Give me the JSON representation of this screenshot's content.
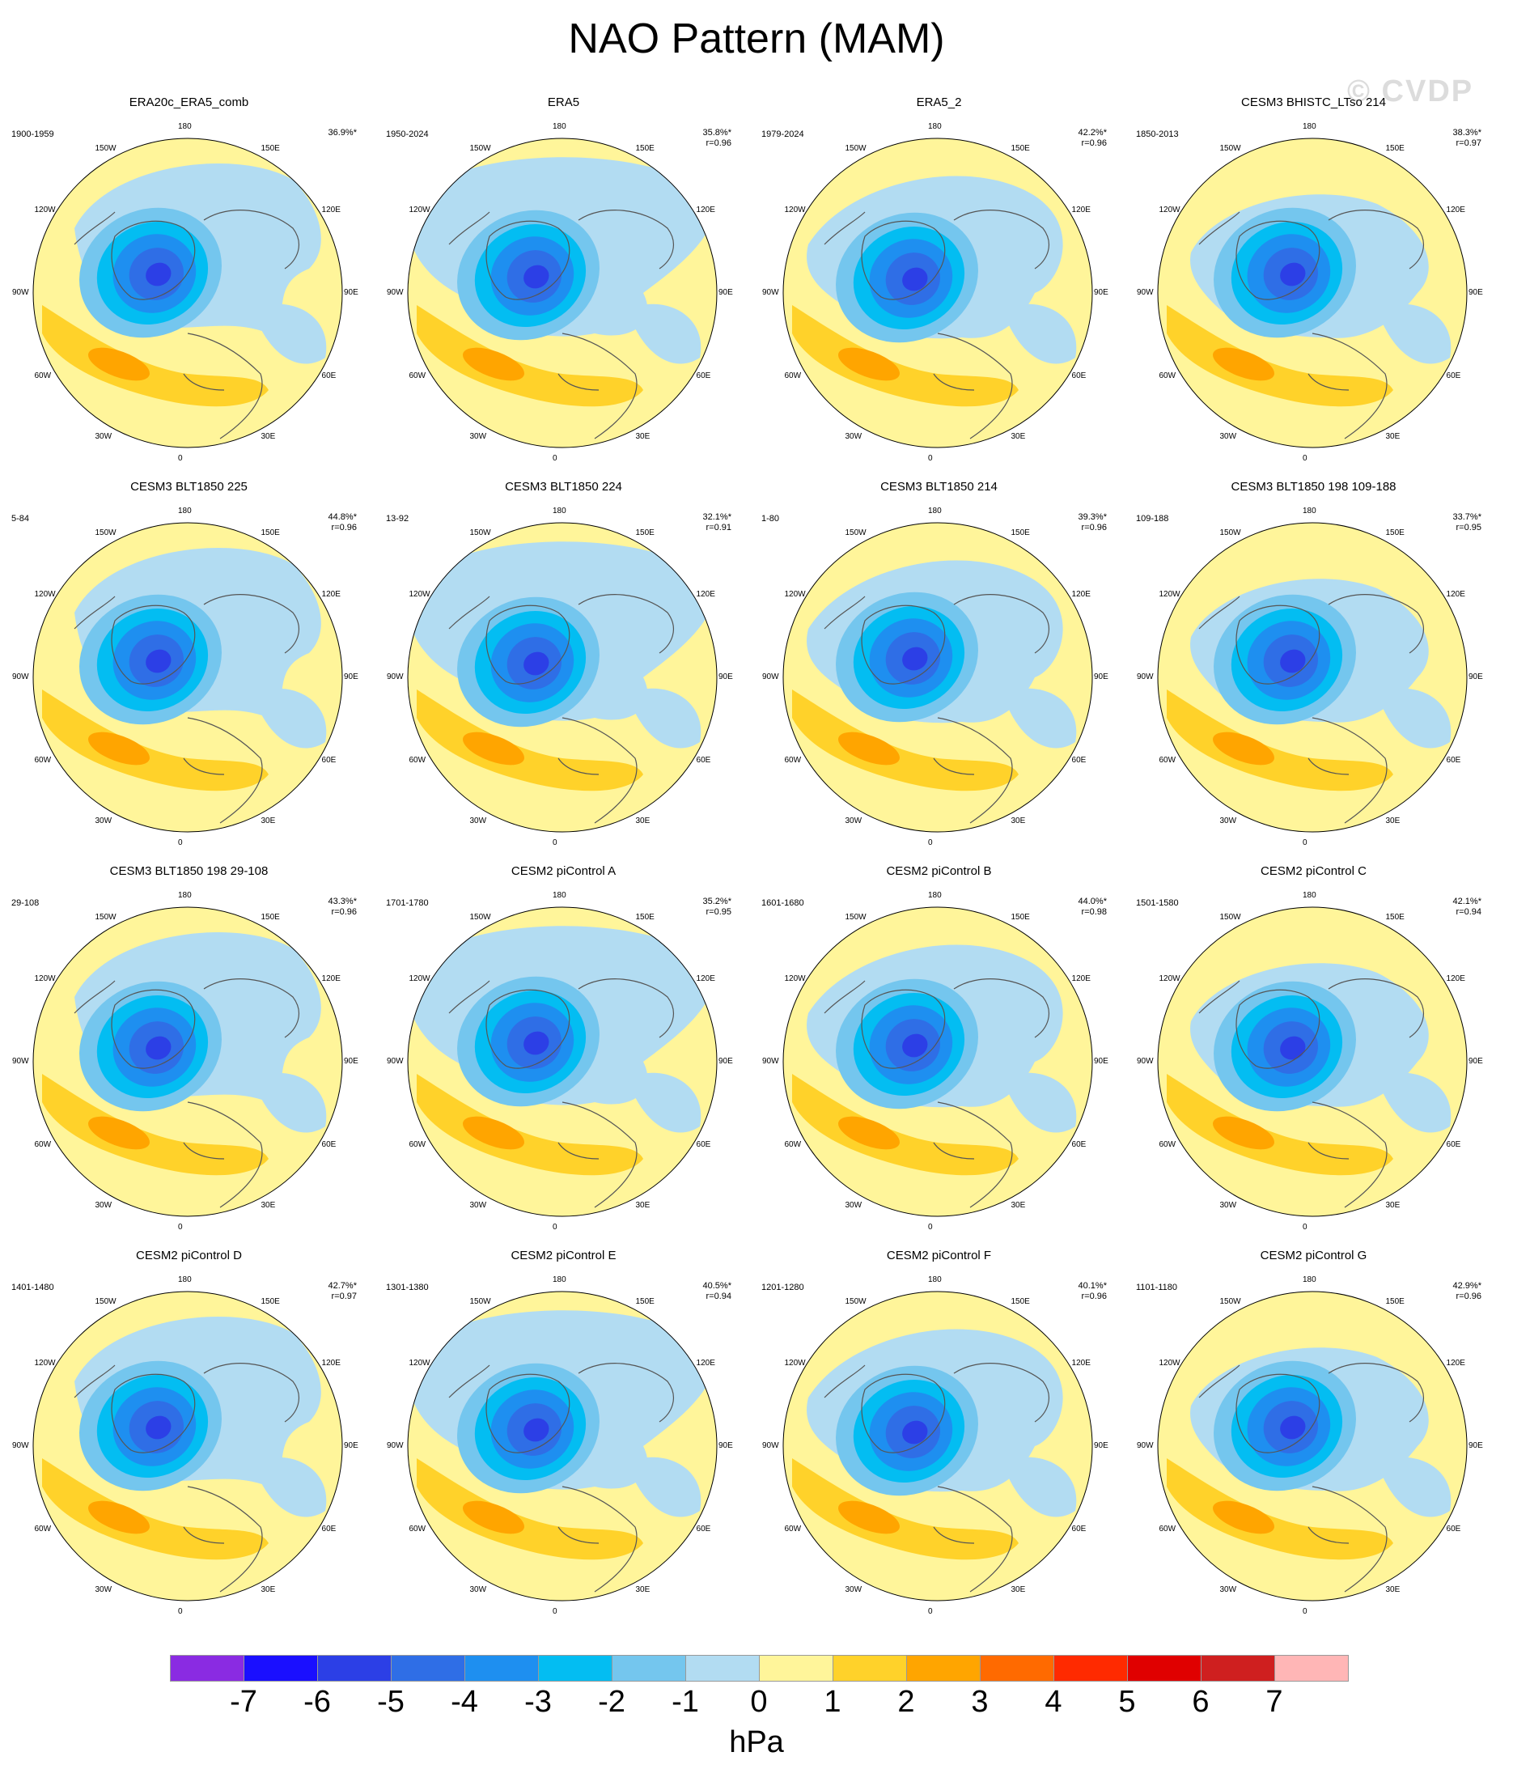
{
  "title": "NAO Pattern (MAM)",
  "watermark": "© CVDP",
  "units": "hPa",
  "longitude_labels": [
    "180",
    "150E",
    "120E",
    "90E",
    "60E",
    "30E",
    "0",
    "30W",
    "60W",
    "90W",
    "120W",
    "150W"
  ],
  "colorbar": {
    "labels": [
      "-7",
      "-6",
      "-5",
      "-4",
      "-3",
      "-2",
      "-1",
      "0",
      "1",
      "2",
      "3",
      "4",
      "5",
      "6",
      "7"
    ],
    "colors": [
      "#8a2be2",
      "#1a0fff",
      "#2c3fe6",
      "#2f6ee6",
      "#1e8ff0",
      "#03bdf2",
      "#74c6ee",
      "#b2dcf2",
      "#fff59a",
      "#ffd22a",
      "#ffa500",
      "#ff6a00",
      "#ff2a00",
      "#e00000",
      "#cf1f1f",
      "#ffb6b6"
    ]
  },
  "panels": [
    {
      "title": "ERA20c_ERA5_comb",
      "period": "1900-1959",
      "pct": "36.9%*",
      "r": ""
    },
    {
      "title": "ERA5",
      "period": "1950-2024",
      "pct": "35.8%*",
      "r": "r=0.96"
    },
    {
      "title": "ERA5_2",
      "period": "1979-2024",
      "pct": "42.2%*",
      "r": "r=0.96"
    },
    {
      "title": "CESM3 BHISTC_LTso 214",
      "period": "1850-2013",
      "pct": "38.3%*",
      "r": "r=0.97"
    },
    {
      "title": "CESM3 BLT1850 225",
      "period": "5-84",
      "pct": "44.8%*",
      "r": "r=0.96"
    },
    {
      "title": "CESM3 BLT1850 224",
      "period": "13-92",
      "pct": "32.1%*",
      "r": "r=0.91"
    },
    {
      "title": "CESM3 BLT1850 214",
      "period": "1-80",
      "pct": "39.3%*",
      "r": "r=0.96"
    },
    {
      "title": "CESM3 BLT1850 198 109-188",
      "period": "109-188",
      "pct": "33.7%*",
      "r": "r=0.95"
    },
    {
      "title": "CESM3 BLT1850 198 29-108",
      "period": "29-108",
      "pct": "43.3%*",
      "r": "r=0.96"
    },
    {
      "title": "CESM2 piControl A",
      "period": "1701-1780",
      "pct": "35.2%*",
      "r": "r=0.95"
    },
    {
      "title": "CESM2 piControl B",
      "period": "1601-1680",
      "pct": "44.0%*",
      "r": "r=0.98"
    },
    {
      "title": "CESM2 piControl C",
      "period": "1501-1580",
      "pct": "42.1%*",
      "r": "r=0.94"
    },
    {
      "title": "CESM2 piControl D",
      "period": "1401-1480",
      "pct": "42.7%*",
      "r": "r=0.97"
    },
    {
      "title": "CESM2 piControl E",
      "period": "1301-1380",
      "pct": "40.5%*",
      "r": "r=0.94"
    },
    {
      "title": "CESM2 piControl F",
      "period": "1201-1280",
      "pct": "40.1%*",
      "r": "r=0.96"
    },
    {
      "title": "CESM2 piControl G",
      "period": "1101-1180",
      "pct": "42.9%*",
      "r": "r=0.96"
    }
  ]
}
